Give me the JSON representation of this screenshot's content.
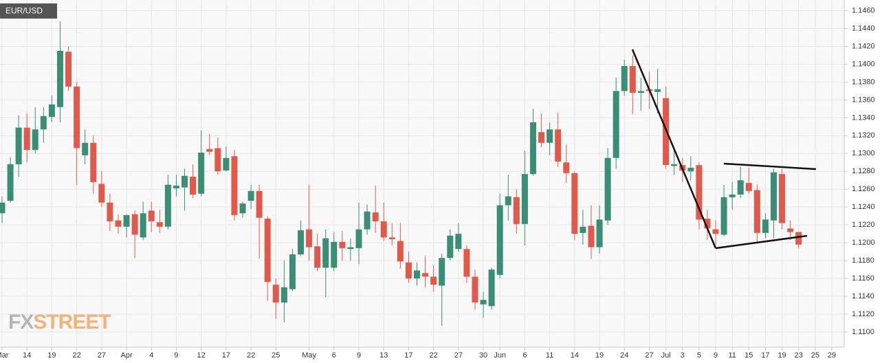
{
  "chart_data": {
    "type": "candlestick",
    "title": "EUR/USD",
    "watermark": {
      "prefix": "FX",
      "suffix": "STREET"
    },
    "categories": [
      "Mar",
      null,
      null,
      "14",
      null,
      null,
      "19",
      null,
      null,
      "22",
      null,
      null,
      "27",
      null,
      null,
      "Apr",
      null,
      null,
      "4",
      null,
      null,
      "9",
      null,
      null,
      "12",
      null,
      null,
      "17",
      null,
      null,
      "22",
      null,
      null,
      "25",
      null,
      null,
      null,
      "May",
      null,
      null,
      "6",
      null,
      null,
      "9",
      null,
      null,
      "13",
      null,
      null,
      "17",
      null,
      null,
      "22",
      null,
      null,
      "27",
      null,
      null,
      "30",
      null,
      "Jun",
      null,
      null,
      "6",
      null,
      null,
      "11",
      null,
      null,
      "14",
      null,
      null,
      "19",
      null,
      null,
      "24",
      null,
      null,
      "27",
      null,
      "Jul",
      null,
      "3",
      null,
      "5",
      null,
      "9",
      null,
      "11",
      null,
      "15",
      null,
      "17",
      null,
      "19",
      null,
      "23",
      null,
      "25",
      null,
      "29"
    ],
    "open": [
      1.1233,
      1.1247,
      1.1288,
      1.1329,
      1.1304,
      1.1327,
      1.1341,
      1.1352,
      1.1414,
      1.1375,
      1.1298,
      1.1312,
      1.1266,
      1.1245,
      1.1225,
      1.1218,
      1.1232,
      1.1206,
      1.1236,
      1.1223,
      1.1218,
      1.1261,
      1.1262,
      1.1274,
      1.1255,
      1.1305,
      1.1306,
      1.1281,
      1.1297,
      1.1233,
      1.1247,
      1.1258,
      1.1227,
      1.1153,
      1.1133,
      1.1148,
      1.1187,
      1.1215,
      1.1196,
      1.1172,
      1.1172,
      1.1201,
      1.1193,
      1.1194,
      1.1215,
      1.1234,
      1.1224,
      1.1206,
      1.1202,
      1.1178,
      1.116,
      1.1166,
      1.1162,
      1.1152,
      1.1183,
      1.1193,
      1.1193,
      1.1162,
      1.1131,
      1.1129,
      1.1164,
      1.1242,
      1.1251,
      1.1221,
      1.1277,
      1.1324,
      1.1312,
      1.1327,
      1.129,
      1.1278,
      1.1211,
      1.1219,
      1.1195,
      1.1225,
      1.1295,
      1.137,
      1.1398,
      1.1368,
      1.1372,
      1.1369,
      1.1362,
      1.1286,
      1.1287,
      1.128,
      1.1287,
      1.1227,
      1.1215,
      1.1209,
      1.1251,
      1.1254,
      1.1267,
      1.1259,
      1.1211,
      1.1225,
      1.1277,
      1.1216,
      1.1212,
      null,
      null,
      null,
      null
    ],
    "high": [
      1.1252,
      1.1296,
      1.1343,
      1.1345,
      1.1352,
      1.1352,
      1.1365,
      1.1448,
      1.142,
      1.138,
      1.1327,
      1.132,
      1.128,
      1.1255,
      1.1232,
      1.1232,
      1.1236,
      1.1246,
      1.1246,
      1.1237,
      1.1276,
      1.1276,
      1.1283,
      1.1288,
      1.1326,
      1.1322,
      1.1318,
      1.1308,
      1.1304,
      1.1246,
      1.1265,
      1.1265,
      1.123,
      1.116,
      1.118,
      1.1193,
      1.1225,
      1.1265,
      1.121,
      1.1215,
      1.1212,
      1.1213,
      1.1205,
      1.1245,
      1.1243,
      1.1264,
      1.1245,
      1.1222,
      1.1222,
      1.119,
      1.1178,
      1.1185,
      1.1175,
      1.1188,
      1.1215,
      1.1222,
      1.1197,
      1.117,
      1.1145,
      1.1172,
      1.1255,
      1.1276,
      1.126,
      1.1303,
      1.135,
      1.1345,
      1.1335,
      1.1346,
      1.131,
      1.128,
      1.1237,
      1.1242,
      1.1242,
      1.1306,
      1.1385,
      1.1405,
      1.141,
      1.1385,
      1.1392,
      1.1395,
      1.1375,
      1.1303,
      1.1295,
      1.1297,
      1.129,
      1.1237,
      1.1225,
      1.1265,
      1.1268,
      1.1285,
      1.1284,
      1.1265,
      1.1233,
      1.1283,
      1.1283,
      1.1225,
      1.1212,
      null,
      null,
      null,
      null
    ],
    "low": [
      1.1222,
      1.1245,
      1.1274,
      1.129,
      1.13,
      1.1312,
      1.1335,
      1.1335,
      1.137,
      1.1265,
      1.1288,
      1.1255,
      1.124,
      1.1213,
      1.121,
      1.1206,
      1.1183,
      1.1203,
      1.1212,
      1.1211,
      1.1215,
      1.1252,
      1.1236,
      1.125,
      1.1252,
      1.1298,
      1.1276,
      1.128,
      1.1225,
      1.1228,
      1.1238,
      1.1182,
      1.1135,
      1.1115,
      1.1111,
      1.1146,
      1.1185,
      1.118,
      1.1168,
      1.1139,
      1.1168,
      1.118,
      1.118,
      1.1176,
      1.1209,
      1.1211,
      1.1202,
      1.1197,
      1.1171,
      1.1155,
      1.1152,
      1.115,
      1.1145,
      1.1107,
      1.118,
      1.119,
      1.1155,
      1.1125,
      1.1116,
      1.1125,
      1.116,
      1.1225,
      1.121,
      1.1197,
      1.1275,
      1.1307,
      1.1298,
      1.1285,
      1.1267,
      1.1203,
      1.1198,
      1.1182,
      1.1188,
      1.122,
      1.1283,
      1.1365,
      1.1344,
      1.1348,
      1.135,
      1.1345,
      1.1283,
      1.1276,
      1.1268,
      1.127,
      1.1215,
      1.1203,
      1.1197,
      1.1207,
      1.1237,
      1.125,
      1.1255,
      1.12,
      1.1205,
      1.1205,
      1.1215,
      1.1203,
      1.1194,
      null,
      null,
      null,
      null
    ],
    "close": [
      1.1245,
      1.1288,
      1.1329,
      1.1304,
      1.1327,
      1.1342,
      1.1355,
      1.1415,
      1.1375,
      1.1306,
      1.1312,
      1.1268,
      1.1245,
      1.1224,
      1.1218,
      1.1231,
      1.1209,
      1.1233,
      1.1224,
      1.1218,
      1.1265,
      1.1264,
      1.1275,
      1.1254,
      1.1301,
      1.1302,
      1.128,
      1.1295,
      1.1231,
      1.1244,
      1.1258,
      1.1228,
      1.1156,
      1.1133,
      1.115,
      1.1187,
      1.1214,
      1.1195,
      1.1172,
      1.1205,
      1.1201,
      1.1194,
      1.1195,
      1.1215,
      1.1235,
      1.1224,
      1.1206,
      1.1204,
      1.1179,
      1.116,
      1.1169,
      1.1162,
      1.1153,
      1.1183,
      1.1208,
      1.121,
      1.1162,
      1.1133,
      1.1136,
      1.117,
      1.1242,
      1.1252,
      1.1221,
      1.1277,
      1.1335,
      1.1312,
      1.1327,
      1.1291,
      1.1278,
      1.121,
      1.1218,
      1.1195,
      1.1226,
      1.1295,
      1.137,
      1.1398,
      1.1368,
      1.137,
      1.137,
      1.1372,
      1.1287,
      1.1288,
      1.1281,
      1.1284,
      1.1226,
      1.1216,
      1.121,
      1.1251,
      1.1254,
      1.127,
      1.1258,
      1.1211,
      1.1226,
      1.1279,
      1.1222,
      1.1212,
      1.1198,
      null,
      null,
      null,
      null
    ],
    "up_color": "#3b8d75",
    "down_color": "#e05a4b",
    "ylim": [
      1.1083,
      1.1472
    ],
    "yticks": [
      {
        "value": 1.11,
        "label": "1.1100"
      },
      {
        "value": 1.112,
        "label": "1.1120"
      },
      {
        "value": 1.114,
        "label": "1.1140"
      },
      {
        "value": 1.116,
        "label": "1.1160"
      },
      {
        "value": 1.118,
        "label": "1.1180"
      },
      {
        "value": 1.12,
        "label": "1.1200"
      },
      {
        "value": 1.122,
        "label": "1.1220"
      },
      {
        "value": 1.124,
        "label": "1.1240"
      },
      {
        "value": 1.126,
        "label": "1.1260"
      },
      {
        "value": 1.128,
        "label": "1.1280"
      },
      {
        "value": 1.13,
        "label": "1.1300"
      },
      {
        "value": 1.132,
        "label": "1.1320"
      },
      {
        "value": 1.134,
        "label": "1.1340"
      },
      {
        "value": 1.136,
        "label": "1.1360"
      },
      {
        "value": 1.138,
        "label": "1.1380"
      },
      {
        "value": 1.14,
        "label": "1.1400"
      },
      {
        "value": 1.142,
        "label": "1.1420"
      },
      {
        "value": 1.144,
        "label": "1.1440"
      },
      {
        "value": 1.146,
        "label": "1.1460"
      }
    ],
    "grid": true
  }
}
